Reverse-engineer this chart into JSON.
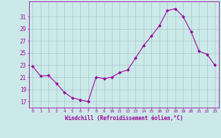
{
  "x": [
    0,
    1,
    2,
    3,
    4,
    5,
    6,
    7,
    8,
    9,
    10,
    11,
    12,
    13,
    14,
    15,
    16,
    17,
    18,
    19,
    20,
    21,
    22,
    23
  ],
  "y": [
    22.8,
    21.2,
    21.3,
    20.0,
    18.5,
    17.6,
    17.3,
    17.0,
    21.0,
    20.8,
    21.0,
    21.8,
    22.2,
    24.2,
    26.2,
    27.8,
    29.5,
    32.0,
    32.3,
    31.0,
    28.5,
    25.3,
    24.8,
    23.0
  ],
  "line_color": "#990099",
  "marker": "D",
  "marker_size": 2,
  "bg_color": "#cce9e9",
  "grid_color": "#aacccc",
  "xlabel": "Windchill (Refroidissement éolien,°C)",
  "xlabel_color": "#990099",
  "yticks": [
    17,
    19,
    21,
    23,
    25,
    27,
    29,
    31
  ],
  "ylim": [
    16.0,
    33.5
  ],
  "xlim": [
    -0.5,
    23.5
  ],
  "tick_color": "#990099"
}
